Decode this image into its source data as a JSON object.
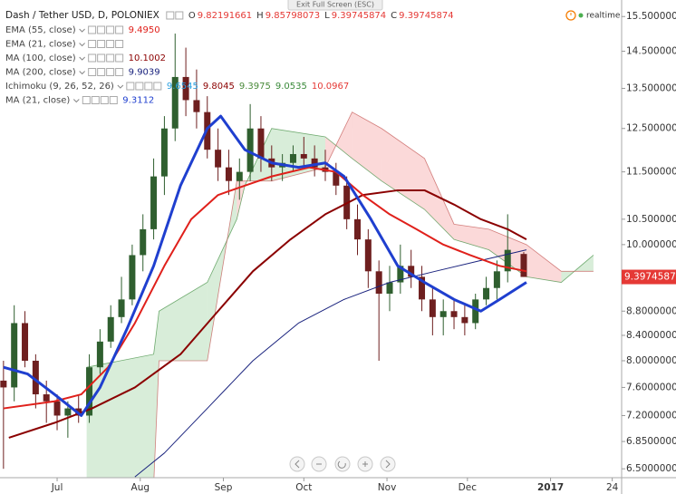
{
  "chart_data": {
    "type": "candlestick",
    "title": "Dash / Tether USD, D, POLONIEX",
    "ohlc": [
      {
        "k": "O",
        "v": "9.82191661"
      },
      {
        "k": "H",
        "v": "9.85798073"
      },
      {
        "k": "L",
        "v": "9.39745874"
      },
      {
        "k": "C",
        "v": "9.39745874"
      }
    ],
    "status": "realtime",
    "exit_button": "Exit Full Screen (ESC)",
    "price_tag": "9.39745874",
    "log": true,
    "xlim": [
      8.7,
      240.5
    ],
    "ylim": [
      6.39,
      16.0
    ],
    "xticks": [
      {
        "value": 30,
        "label": "Jul"
      },
      {
        "value": 61,
        "label": "Aug"
      },
      {
        "value": 92,
        "label": "Sep"
      },
      {
        "value": 122,
        "label": "Oct"
      },
      {
        "value": 153,
        "label": "Nov"
      },
      {
        "value": 183,
        "label": "Dec"
      },
      {
        "value": 214,
        "label": "2017"
      },
      {
        "value": 237,
        "label": "24"
      }
    ],
    "yticks": [
      {
        "value": 15.5,
        "label": "15.50000000"
      },
      {
        "value": 14.5,
        "label": "14.50000000"
      },
      {
        "value": 13.5,
        "label": "13.50000000"
      },
      {
        "value": 12.5,
        "label": "12.50000000"
      },
      {
        "value": 11.5,
        "label": "11.50000000"
      },
      {
        "value": 10.5,
        "label": "10.50000000"
      },
      {
        "value": 10.0,
        "label": "10.00000000"
      },
      {
        "value": 8.8,
        "label": "8.80000000"
      },
      {
        "value": 8.4,
        "label": "8.40000000"
      },
      {
        "value": 8.0,
        "label": "8.00000000"
      },
      {
        "value": 7.6,
        "label": "7.60000000"
      },
      {
        "value": 7.2,
        "label": "7.20000000"
      },
      {
        "value": 6.85,
        "label": "6.85000000"
      },
      {
        "value": 6.5,
        "label": "6.50000000"
      }
    ],
    "legend": [
      {
        "name": "EMA (55, close)",
        "values": [
          "9.4950"
        ],
        "color": "#e0201b"
      },
      {
        "name": "EMA (21, close)",
        "values": [],
        "color": "#1f3fcf"
      },
      {
        "name": "MA (100, close)",
        "values": [
          "10.1002"
        ],
        "color": "#8b0000"
      },
      {
        "name": "MA (200, close)",
        "values": [
          "9.9039"
        ],
        "color": "#1a237e"
      },
      {
        "name": "Ichimoku (9, 26, 52, 26)",
        "values": [
          "9.6545",
          "9.8045",
          "9.3975",
          "9.0535",
          "10.0967"
        ],
        "color": "#2aa0e0"
      },
      {
        "name": "MA (21, close)",
        "values": [
          "9.3112"
        ],
        "color": "#1f3fcf"
      }
    ],
    "up_color": "#2f5f2f",
    "down_color": "#6e1f1f",
    "x": [
      10,
      14,
      18,
      22,
      26,
      30,
      34,
      38,
      42,
      46,
      50,
      54,
      58,
      62,
      66,
      70,
      74,
      78,
      82,
      86,
      90,
      94,
      98,
      102,
      106,
      110,
      114,
      118,
      122,
      126,
      130,
      134,
      138,
      142,
      146,
      150,
      154,
      158,
      162,
      166,
      170,
      174,
      178,
      182,
      186,
      190,
      194,
      198,
      204
    ],
    "open": [
      7.7,
      7.6,
      8.6,
      8.0,
      7.5,
      7.4,
      7.2,
      7.3,
      7.2,
      7.9,
      8.3,
      8.7,
      9.0,
      9.8,
      10.3,
      11.4,
      12.5,
      13.8,
      13.2,
      12.9,
      12.0,
      11.6,
      11.3,
      11.5,
      12.5,
      11.8,
      11.6,
      11.7,
      11.9,
      11.8,
      11.6,
      11.5,
      11.2,
      10.5,
      10.1,
      9.5,
      9.1,
      9.3,
      9.6,
      9.4,
      9.0,
      8.7,
      8.8,
      8.7,
      8.6,
      9.0,
      9.2,
      9.5,
      9.82191661
    ],
    "high": [
      8.0,
      8.9,
      8.8,
      8.1,
      7.7,
      7.5,
      7.4,
      7.5,
      8.1,
      8.5,
      8.9,
      9.4,
      10.0,
      10.6,
      11.8,
      12.8,
      15.0,
      14.6,
      14.0,
      13.3,
      12.5,
      12.0,
      11.8,
      13.1,
      12.8,
      12.1,
      11.9,
      12.1,
      12.3,
      12.1,
      12.0,
      11.7,
      11.4,
      10.8,
      10.3,
      9.7,
      9.6,
      10.0,
      9.9,
      9.6,
      9.2,
      9.0,
      9.0,
      8.9,
      9.1,
      9.4,
      9.7,
      10.6,
      9.85798073
    ],
    "low": [
      6.5,
      7.4,
      7.9,
      7.3,
      7.1,
      7.0,
      6.9,
      7.1,
      7.1,
      7.8,
      8.2,
      8.6,
      8.9,
      9.5,
      10.1,
      11.0,
      12.2,
      12.8,
      12.5,
      11.8,
      11.3,
      11.0,
      10.9,
      11.3,
      11.5,
      11.3,
      11.3,
      11.5,
      11.6,
      11.4,
      11.3,
      11.0,
      10.3,
      9.8,
      9.2,
      8.0,
      8.8,
      9.1,
      9.2,
      8.8,
      8.4,
      8.4,
      8.5,
      8.4,
      8.5,
      8.9,
      9.0,
      9.3,
      9.39745874
    ],
    "close": [
      7.6,
      8.6,
      8.0,
      7.5,
      7.4,
      7.2,
      7.3,
      7.2,
      7.9,
      8.3,
      8.7,
      9.0,
      9.8,
      10.3,
      11.4,
      12.5,
      13.8,
      13.2,
      12.9,
      12.0,
      11.6,
      11.3,
      11.5,
      12.5,
      11.8,
      11.6,
      11.7,
      11.9,
      11.8,
      11.6,
      11.5,
      11.2,
      10.5,
      10.1,
      9.5,
      9.1,
      9.3,
      9.6,
      9.4,
      9.0,
      8.7,
      8.8,
      8.7,
      8.6,
      9.0,
      9.2,
      9.5,
      9.9,
      9.39745874
    ],
    "series": [
      {
        "color": "#1a237e",
        "width": 1,
        "x": [
          59,
          70,
          86,
          103,
          120,
          137,
          154,
          171,
          188,
          205
        ],
        "values": [
          6.4,
          6.7,
          7.3,
          8.0,
          8.6,
          9.0,
          9.3,
          9.5,
          9.7,
          9.9
        ]
      },
      {
        "color": "#8b0000",
        "width": 2,
        "x": [
          12,
          29,
          43,
          59,
          76,
          90,
          103,
          117,
          130,
          144,
          157,
          167,
          178,
          188,
          198,
          205
        ],
        "values": [
          6.9,
          7.1,
          7.3,
          7.6,
          8.1,
          8.8,
          9.5,
          10.1,
          10.6,
          11.0,
          11.1,
          11.1,
          10.8,
          10.5,
          10.3,
          10.1
        ]
      },
      {
        "color": "#e0201b",
        "width": 2,
        "x": [
          10,
          29,
          39,
          49,
          59,
          70,
          80,
          90,
          100,
          110,
          124,
          134,
          144,
          154,
          164,
          174,
          184,
          195,
          205
        ],
        "values": [
          7.3,
          7.4,
          7.5,
          7.9,
          8.6,
          9.6,
          10.5,
          11.0,
          11.2,
          11.4,
          11.6,
          11.5,
          11.0,
          10.6,
          10.3,
          10.0,
          9.8,
          9.6,
          9.5
        ]
      },
      {
        "color": "#1f3fcf",
        "width": 3,
        "x": [
          10,
          19,
          29,
          39,
          46,
          56,
          66,
          76,
          86,
          91,
          100,
          110,
          120,
          130,
          137,
          147,
          157,
          167,
          178,
          188,
          195,
          205
        ],
        "values": [
          7.9,
          7.8,
          7.5,
          7.2,
          7.6,
          8.5,
          9.6,
          11.2,
          12.5,
          12.8,
          12.0,
          11.7,
          11.6,
          11.7,
          11.4,
          10.5,
          9.6,
          9.3,
          9.0,
          8.8,
          9.0,
          9.3
        ]
      }
    ],
    "cloud": {
      "up_color": "#4caf50",
      "down_color": "#ef5350",
      "x": [
        41,
        66,
        68,
        86,
        97,
        100,
        110,
        130,
        140,
        151,
        167,
        178,
        191,
        205,
        218,
        230
      ],
      "span_a": [
        7.9,
        8.1,
        8.8,
        9.3,
        10.5,
        11.2,
        12.5,
        12.3,
        11.8,
        11.3,
        10.7,
        10.1,
        9.9,
        9.4,
        9.3,
        9.8
      ],
      "span_b": [
        6.3,
        6.3,
        8.0,
        8.0,
        11.3,
        11.3,
        11.3,
        11.6,
        12.9,
        12.5,
        11.8,
        10.4,
        10.3,
        10.0,
        9.5,
        9.5
      ]
    }
  }
}
